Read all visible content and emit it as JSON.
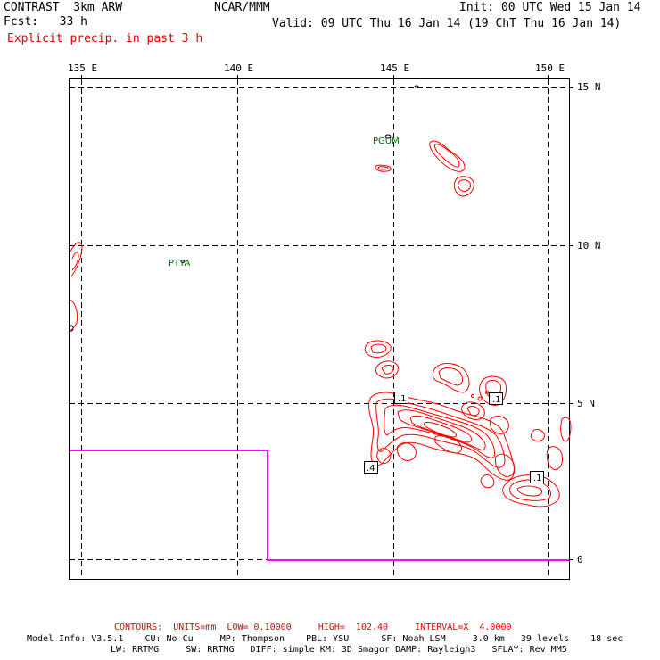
{
  "header": {
    "model_title": "CONTRAST  3km ARW",
    "forecast": "Fcst:   33 h",
    "field": "Explicit precip. in past 3 h",
    "org": "NCAR/MMM",
    "init": "Init: 00 UTC Wed 15 Jan 14",
    "valid": "Valid: 09 UTC Thu 16 Jan 14 (19 ChT Thu 16 Jan 14)"
  },
  "map": {
    "lon_labels": [
      "135 E",
      "140 E",
      "145 E",
      "150 E"
    ],
    "lat_labels": [
      "15 N",
      "10 N",
      "5 N",
      "0"
    ],
    "lon_range": [
      134.6,
      150.8
    ],
    "lat_range": [
      -0.6,
      15.2
    ],
    "grid": true,
    "stations": [
      "PGUM",
      "PTYA"
    ],
    "hilo_labels": [
      ".1",
      ".1",
      ".4",
      ".1"
    ],
    "colors": {
      "precip_contour": "#ff0000",
      "domain_boundary": "#ff00ff",
      "station": "#006600"
    }
  },
  "footer": {
    "contours": "CONTOURS:  UNITS=mm  LOW= 0.10000     HIGH=  102.40     INTERVAL=X  4.0000",
    "model_info_1": "Model Info: V3.5.1    CU: No Cu     MP: Thompson    PBL: YSU      SF: Noah LSM     3.0 km   39 levels    18 sec",
    "model_info_2": "LW: RRTMG     SW: RRTMG   DIFF: simple KM: 3D Smagor DAMP: Rayleigh3   SFLAY: Rev MM5"
  }
}
